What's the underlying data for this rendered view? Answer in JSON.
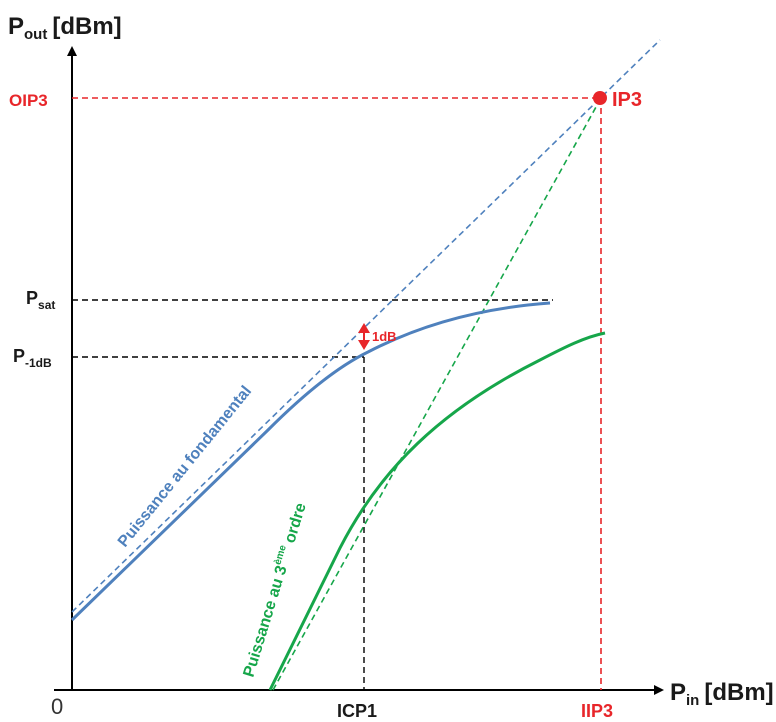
{
  "axes": {
    "y_title_main": "P",
    "y_title_sub": "out",
    "y_title_unit": "[dBm]",
    "x_title_main": "P",
    "x_title_sub": "in",
    "x_title_unit": "[dBm]",
    "origin": "0"
  },
  "y_labels": {
    "oip3": "OIP3",
    "psat_main": "P",
    "psat_sub": "sat",
    "p1db_main": "P",
    "p1db_sub": "-1dB"
  },
  "x_labels": {
    "icp1": "ICP1",
    "iip3": "IIP3"
  },
  "annotations": {
    "ip3": "IP3",
    "one_db": "1dB",
    "fundamental_curve": "Puissance au fondamental",
    "third_prefix": "Puissance au 3",
    "third_sup": "ème",
    "third_suffix": " ordre"
  },
  "colors": {
    "fundamental": "#4f81bd",
    "third_order": "#16a64a",
    "ip3_red": "#e8262a",
    "axis": "#000000"
  }
}
